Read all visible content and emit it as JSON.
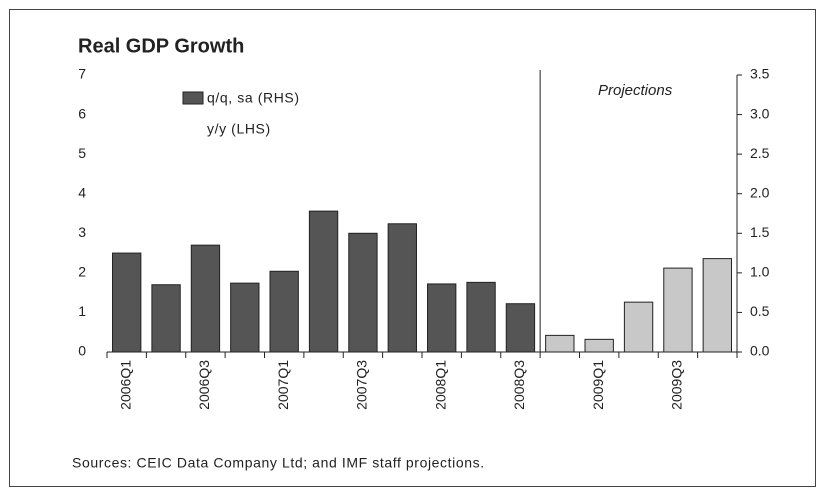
{
  "chart_data": {
    "type": "bar",
    "title": "Real GDP Growth",
    "categories": [
      "2006Q1",
      null,
      "2006Q3",
      null,
      "2007Q1",
      null,
      "2007Q3",
      null,
      "2008Q1",
      null,
      "2008Q3",
      null,
      "2009Q1",
      null,
      "2009Q3",
      null
    ],
    "series": [
      {
        "name": "q/q, sa (RHS)",
        "axis": "y2",
        "color": "#555555",
        "colors": [
          "#555555",
          "#555555",
          "#555555",
          "#555555",
          "#555555",
          "#555555",
          "#555555",
          "#555555",
          "#555555",
          "#555555",
          "#555555",
          "#c8c8c8",
          "#c8c8c8",
          "#c8c8c8",
          "#c8c8c8",
          "#c8c8c8"
        ],
        "values": [
          1.25,
          0.85,
          1.35,
          0.87,
          1.02,
          1.78,
          1.5,
          1.62,
          0.86,
          0.88,
          0.61,
          0.21,
          0.16,
          0.63,
          1.06,
          1.18
        ]
      }
    ],
    "legend_extra": "y/y (LHS)",
    "annotation": "Projections",
    "ylim": [
      0,
      7
    ],
    "yticks": [
      0,
      1,
      2,
      3,
      4,
      5,
      6,
      7
    ],
    "y2lim": [
      0,
      3.5
    ],
    "y2ticks": [
      {
        "value": 0,
        "label": "0.0"
      },
      0.5,
      {
        "value": 1,
        "label": "1.0"
      },
      1.5,
      {
        "value": 2,
        "label": "2.0"
      },
      2.5,
      {
        "value": 3,
        "label": "3.0"
      },
      3.5
    ],
    "source": "Sources: CEIC Data Company Ltd; and IMF staff projections."
  }
}
